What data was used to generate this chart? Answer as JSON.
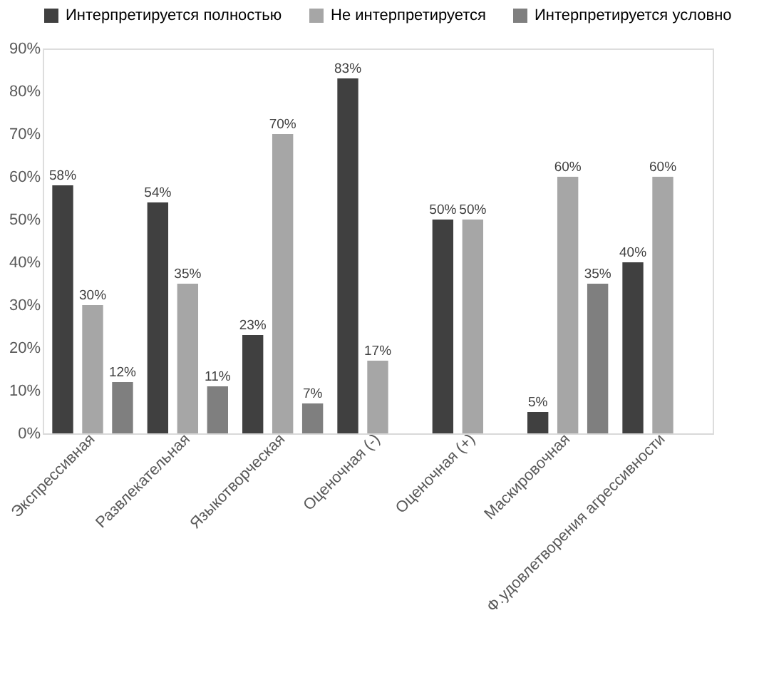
{
  "chart_data": {
    "type": "bar",
    "categories": [
      "Экспрессивная",
      "Развлекательная",
      "Языкотворческая",
      "Оценочная (-)",
      "Оценочная (+)",
      "Маскировочная",
      "Ф.удовлетворения агрессивности"
    ],
    "series": [
      {
        "name": "Интерпретируется полностью",
        "color": "#404040",
        "values": [
          58,
          54,
          23,
          83,
          50,
          5,
          40
        ],
        "value_labels": [
          "58%",
          "54%",
          "23%",
          "83%",
          "50%",
          "5%",
          "40%"
        ]
      },
      {
        "name": "Не интерпретируется",
        "color": "#a6a6a6",
        "values": [
          30,
          35,
          70,
          17,
          50,
          60,
          60
        ],
        "value_labels": [
          "30%",
          "35%",
          "70%",
          "17%",
          "50%",
          "60%",
          "60%"
        ]
      },
      {
        "name": "Интерпретируется условно",
        "color": "#7f7f7f",
        "values": [
          12,
          11,
          7,
          null,
          null,
          35,
          null
        ],
        "value_labels": [
          "12%",
          "11%",
          "7%",
          null,
          null,
          "35%",
          null
        ]
      }
    ],
    "ylim": [
      0,
      90
    ],
    "yticks": [
      {
        "value": 0,
        "label": "0%"
      },
      {
        "value": 10,
        "label": "10%"
      },
      {
        "value": 20,
        "label": "20%"
      },
      {
        "value": 30,
        "label": "30%"
      },
      {
        "value": 40,
        "label": "40%"
      },
      {
        "value": 50,
        "label": "50%"
      },
      {
        "value": 60,
        "label": "60%"
      },
      {
        "value": 70,
        "label": "70%"
      },
      {
        "value": 80,
        "label": "80%"
      },
      {
        "value": 90,
        "label": "90%"
      }
    ],
    "grid": false,
    "legend": "top"
  }
}
